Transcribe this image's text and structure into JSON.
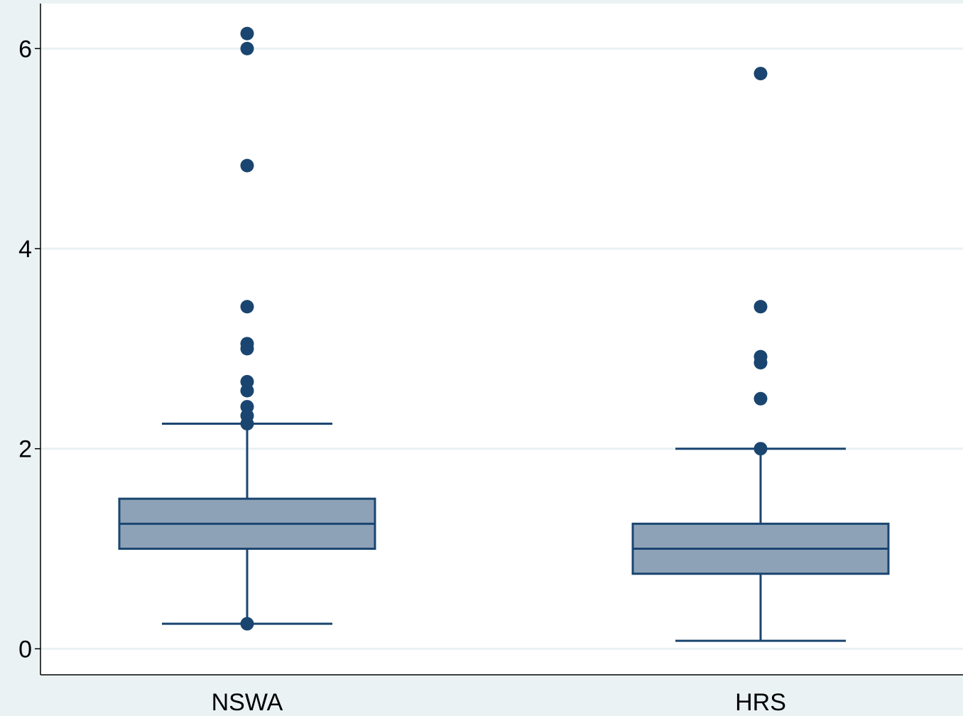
{
  "chart_data": {
    "type": "box",
    "title": "",
    "xlabel": "",
    "ylabel": "",
    "ylim": [
      -0.26,
      6.45
    ],
    "yticks": [
      0,
      2,
      4,
      6
    ],
    "grid": true,
    "colors": {
      "box_fill": "#8ea2b7",
      "stroke": "#1a4570",
      "outlier": "#1a4570",
      "grid": "#eaf2f3",
      "plot_bg": "#ffffff",
      "outer_bg": "#eaf2f3"
    },
    "categories": [
      "NSWA",
      "HRS"
    ],
    "boxes": [
      {
        "category": "NSWA",
        "whisker_low": 0.25,
        "q1": 1.0,
        "median": 1.25,
        "q3": 1.5,
        "whisker_high": 2.25,
        "outliers": [
          6.15,
          6.0,
          4.83,
          3.42,
          3.05,
          3.0,
          2.67,
          2.58,
          2.42,
          2.33,
          2.25,
          0.25
        ]
      },
      {
        "category": "HRS",
        "whisker_low": 0.08,
        "q1": 0.75,
        "median": 1.0,
        "q3": 1.25,
        "whisker_high": 2.0,
        "outliers": [
          5.75,
          3.42,
          2.92,
          2.86,
          2.5,
          2.0
        ]
      }
    ]
  }
}
